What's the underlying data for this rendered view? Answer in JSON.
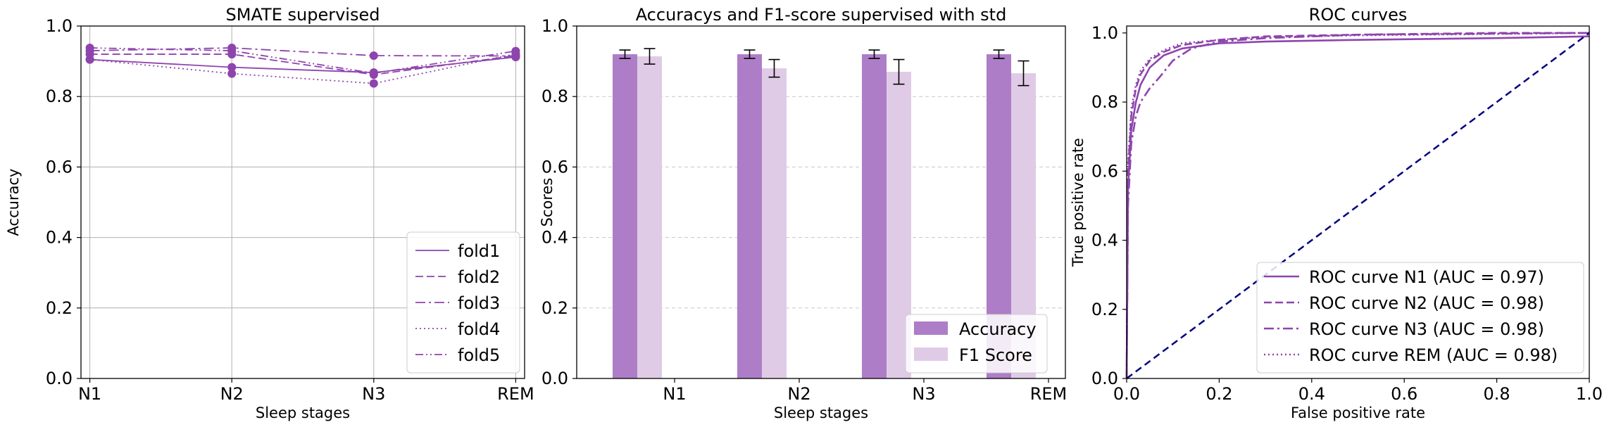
{
  "colors": {
    "purple": "#8e44ad",
    "accuracy_bar": "#ae7dc7",
    "f1_bar": "#dfcbe6",
    "navy": "#00007f",
    "grid": "#b0b0b0"
  },
  "chart_data": [
    {
      "type": "line",
      "title": "SMATE supervised",
      "xlabel": "Sleep stages",
      "ylabel": "Accuracy",
      "categories": [
        "N1",
        "N2",
        "N3",
        "REM"
      ],
      "ylim": [
        0,
        1
      ],
      "yticks": [
        "0.0",
        "0.2",
        "0.4",
        "0.6",
        "0.8",
        "1.0"
      ],
      "grid": "both",
      "legend_position": "lower-right",
      "series": [
        {
          "name": "fold1",
          "style": "solid",
          "values": [
            0.905,
            0.883,
            0.868,
            0.912
          ]
        },
        {
          "name": "fold2",
          "style": "dashed",
          "values": [
            0.92,
            0.92,
            0.862,
            0.916
          ]
        },
        {
          "name": "fold3",
          "style": "dashdot",
          "values": [
            0.93,
            0.938,
            0.916,
            0.915
          ]
        },
        {
          "name": "fold4",
          "style": "dotted",
          "values": [
            0.905,
            0.865,
            0.837,
            0.921
          ]
        },
        {
          "name": "fold5",
          "style": "dashdotdot",
          "values": [
            0.938,
            0.93,
            0.866,
            0.929
          ]
        }
      ]
    },
    {
      "type": "bar",
      "title": "Accuracys and F1-score supervised with std",
      "xlabel": "Sleep stages",
      "ylabel": "Scores",
      "categories": [
        "N1",
        "N2",
        "N3",
        "REM"
      ],
      "ylim": [
        0,
        1
      ],
      "yticks": [
        "0.0",
        "0.2",
        "0.4",
        "0.6",
        "0.8",
        "1.0"
      ],
      "grid": "y-dashed",
      "legend_position": "lower-right",
      "series": [
        {
          "name": "Accuracy",
          "values": [
            0.92,
            0.92,
            0.92,
            0.92
          ],
          "std": [
            0.012,
            0.012,
            0.012,
            0.012
          ]
        },
        {
          "name": "F1 Score",
          "values": [
            0.914,
            0.88,
            0.87,
            0.866
          ],
          "std": [
            0.022,
            0.025,
            0.035,
            0.035
          ]
        }
      ]
    },
    {
      "type": "line",
      "title": "ROC curves",
      "xlabel": "False positive rate",
      "ylabel": "True positive rate",
      "xlim": [
        0,
        1
      ],
      "ylim": [
        0,
        1.02
      ],
      "xticks": [
        "0.0",
        "0.2",
        "0.4",
        "0.6",
        "0.8",
        "1.0"
      ],
      "yticks": [
        "0.0",
        "0.2",
        "0.4",
        "0.6",
        "0.8",
        "1.0"
      ],
      "legend_position": "lower-right",
      "series": [
        {
          "name": "ROC curve N1 (AUC = 0.97)",
          "style": "solid",
          "x": [
            0,
            0.003,
            0.01,
            0.02,
            0.03,
            0.05,
            0.08,
            0.12,
            0.2,
            0.3,
            0.5,
            0.8,
            1.0
          ],
          "y": [
            0,
            0.55,
            0.72,
            0.8,
            0.85,
            0.9,
            0.935,
            0.955,
            0.97,
            0.975,
            0.98,
            0.985,
            0.99
          ]
        },
        {
          "name": "ROC curve N2 (AUC = 0.98)",
          "style": "dashed",
          "x": [
            0,
            0.003,
            0.01,
            0.02,
            0.03,
            0.05,
            0.08,
            0.12,
            0.2,
            0.3,
            0.5,
            0.8,
            1.0
          ],
          "y": [
            0,
            0.6,
            0.76,
            0.84,
            0.88,
            0.92,
            0.945,
            0.965,
            0.98,
            0.99,
            0.995,
            1.0,
            1.0
          ]
        },
        {
          "name": "ROC curve N3 (AUC = 0.98)",
          "style": "dashdot",
          "x": [
            0,
            0.003,
            0.01,
            0.02,
            0.03,
            0.05,
            0.07,
            0.1,
            0.14,
            0.2,
            0.3,
            0.5,
            1.0
          ],
          "y": [
            0,
            0.5,
            0.68,
            0.76,
            0.8,
            0.84,
            0.87,
            0.92,
            0.955,
            0.975,
            0.985,
            0.995,
            1.0
          ]
        },
        {
          "name": "ROC curve REM (AUC = 0.98)",
          "style": "dotted",
          "x": [
            0,
            0.003,
            0.01,
            0.02,
            0.03,
            0.05,
            0.08,
            0.12,
            0.2,
            0.3,
            0.5,
            0.8,
            1.0
          ],
          "y": [
            0,
            0.62,
            0.78,
            0.85,
            0.89,
            0.925,
            0.95,
            0.97,
            0.98,
            0.988,
            0.993,
            0.997,
            1.0
          ]
        },
        {
          "name": "",
          "style": "chance",
          "color": "#00007f",
          "x": [
            0,
            1
          ],
          "y": [
            0,
            1
          ]
        }
      ]
    }
  ]
}
